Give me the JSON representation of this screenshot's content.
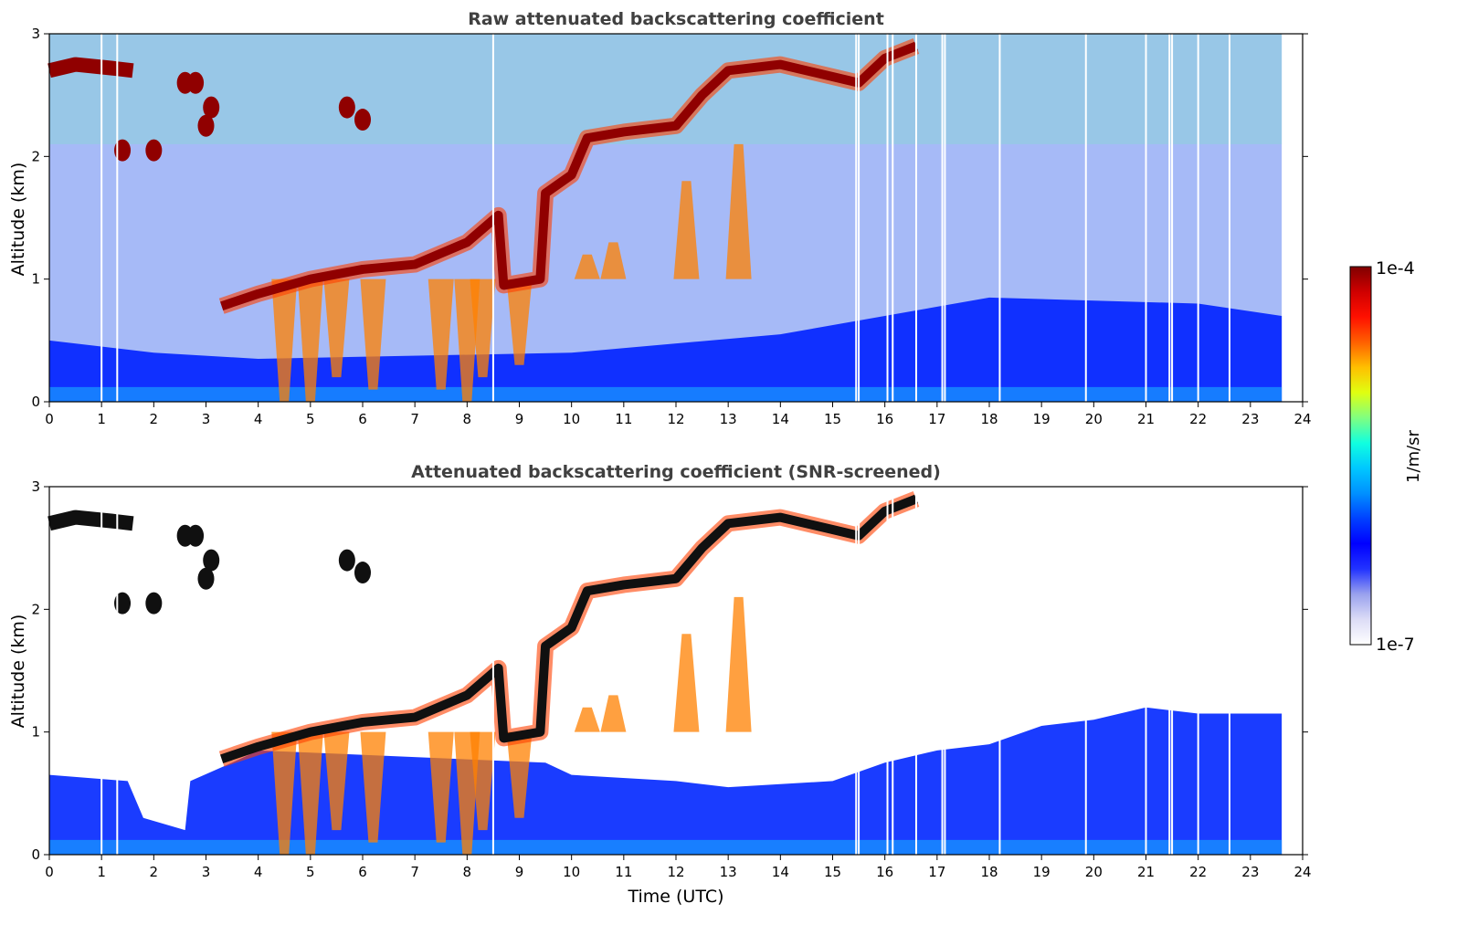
{
  "chart_data": [
    {
      "type": "heatmap",
      "title": "Raw attenuated backscattering coefficient",
      "xlabel": "",
      "ylabel": "Altitude (km)",
      "xlim": [
        0,
        24
      ],
      "ylim": [
        0,
        3
      ],
      "x_ticks": [
        "0",
        "1",
        "2",
        "3",
        "4",
        "5",
        "6",
        "7",
        "8",
        "9",
        "10",
        "11",
        "12",
        "13",
        "14",
        "15",
        "16",
        "17",
        "18",
        "19",
        "20",
        "21",
        "22",
        "23",
        "24"
      ],
      "y_ticks": [
        "0",
        "1",
        "2",
        "3"
      ],
      "x_unit": "UTC hours",
      "y_unit": "km",
      "signal_end_hour": 23.6,
      "missing_profile_hours": [
        1.0,
        1.3,
        8.5,
        15.45,
        15.5,
        16.05,
        16.15,
        16.6,
        17.1,
        17.15,
        18.2,
        19.85,
        21.0,
        21.45,
        21.5,
        22.0,
        22.6
      ],
      "features": {
        "cloud_top": [
          [
            0,
            2.7
          ],
          [
            0.5,
            2.75
          ],
          [
            1.2,
            2.72
          ],
          [
            1.6,
            2.7
          ]
        ],
        "cloud_patches": [
          [
            2.6,
            2.6
          ],
          [
            2.8,
            2.6
          ],
          [
            3.0,
            2.25
          ],
          [
            3.1,
            2.4
          ],
          [
            2.0,
            2.05
          ],
          [
            1.4,
            2.05
          ],
          [
            5.7,
            2.4
          ],
          [
            6.0,
            2.3
          ]
        ],
        "cloud_base_line": [
          [
            3.3,
            0.78
          ],
          [
            4.0,
            0.88
          ],
          [
            5.0,
            1.0
          ],
          [
            6.0,
            1.08
          ],
          [
            7.0,
            1.12
          ],
          [
            8.0,
            1.3
          ],
          [
            8.6,
            1.52
          ],
          [
            8.7,
            0.95
          ],
          [
            9.4,
            1.0
          ],
          [
            9.5,
            1.7
          ],
          [
            10.0,
            1.85
          ],
          [
            10.3,
            2.15
          ],
          [
            11.0,
            2.2
          ],
          [
            12.0,
            2.25
          ],
          [
            12.5,
            2.5
          ],
          [
            13.0,
            2.7
          ],
          [
            14.0,
            2.75
          ],
          [
            15.0,
            2.65
          ],
          [
            15.5,
            2.6
          ],
          [
            16.0,
            2.8
          ],
          [
            16.6,
            2.9
          ]
        ],
        "precip_shafts": [
          [
            4.5,
            0.0
          ],
          [
            5.0,
            0.0
          ],
          [
            5.5,
            0.2
          ],
          [
            6.2,
            0.1
          ],
          [
            7.5,
            0.1
          ],
          [
            8.0,
            0.0
          ],
          [
            8.3,
            0.2
          ],
          [
            9.0,
            0.3
          ],
          [
            10.3,
            1.2
          ],
          [
            10.8,
            1.3
          ],
          [
            12.2,
            1.8
          ],
          [
            13.2,
            2.1
          ]
        ],
        "boundary_layer_top": [
          [
            0,
            0.5
          ],
          [
            2,
            0.4
          ],
          [
            4,
            0.35
          ],
          [
            10,
            0.4
          ],
          [
            14,
            0.55
          ],
          [
            18,
            0.85
          ],
          [
            22,
            0.8
          ],
          [
            23.6,
            0.7
          ]
        ]
      }
    },
    {
      "type": "heatmap",
      "title": "Attenuated backscattering coefficient (SNR-screened)",
      "xlabel": "Time (UTC)",
      "ylabel": "Altitude (km)",
      "xlim": [
        0,
        24
      ],
      "ylim": [
        0,
        3
      ],
      "x_ticks": [
        "0",
        "1",
        "2",
        "3",
        "4",
        "5",
        "6",
        "7",
        "8",
        "9",
        "10",
        "11",
        "12",
        "13",
        "14",
        "15",
        "16",
        "17",
        "18",
        "19",
        "20",
        "21",
        "22",
        "23",
        "24"
      ],
      "y_ticks": [
        "0",
        "1",
        "2",
        "3"
      ],
      "x_unit": "UTC hours",
      "y_unit": "km",
      "signal_end_hour": 23.6,
      "missing_profile_hours": [
        1.0,
        1.3,
        8.5,
        15.45,
        15.5,
        16.05,
        16.15,
        16.6,
        17.1,
        17.15,
        18.2,
        19.85,
        21.0,
        21.45,
        21.5,
        22.0,
        22.6
      ],
      "features": {
        "aerosol_top": [
          [
            0,
            0.65
          ],
          [
            1.5,
            0.6
          ],
          [
            1.8,
            0.3
          ],
          [
            2.6,
            0.2
          ],
          [
            2.7,
            0.6
          ],
          [
            3.5,
            0.75
          ],
          [
            4,
            0.85
          ],
          [
            9.5,
            0.75
          ],
          [
            10,
            0.65
          ],
          [
            12,
            0.6
          ],
          [
            13,
            0.55
          ],
          [
            15,
            0.6
          ],
          [
            16,
            0.75
          ],
          [
            17,
            0.85
          ],
          [
            18,
            0.9
          ],
          [
            19,
            1.05
          ],
          [
            20,
            1.1
          ],
          [
            21,
            1.2
          ],
          [
            22,
            1.15
          ],
          [
            23.6,
            1.15
          ]
        ]
      }
    }
  ],
  "colorbar": {
    "label": "1/m/sr",
    "max_label": "1e-4",
    "min_label": "1e-7",
    "scale": "log",
    "range": [
      1e-07,
      0.0001
    ],
    "colors": [
      "#ffffff",
      "#dcdcf6",
      "#9aa2ee",
      "#2233ff",
      "#0000ff",
      "#0040ff",
      "#0090ff",
      "#00c8ff",
      "#10ffe0",
      "#80ff80",
      "#e0ff10",
      "#ffc000",
      "#ff6000",
      "#ff1000",
      "#d00000",
      "#800000"
    ]
  }
}
